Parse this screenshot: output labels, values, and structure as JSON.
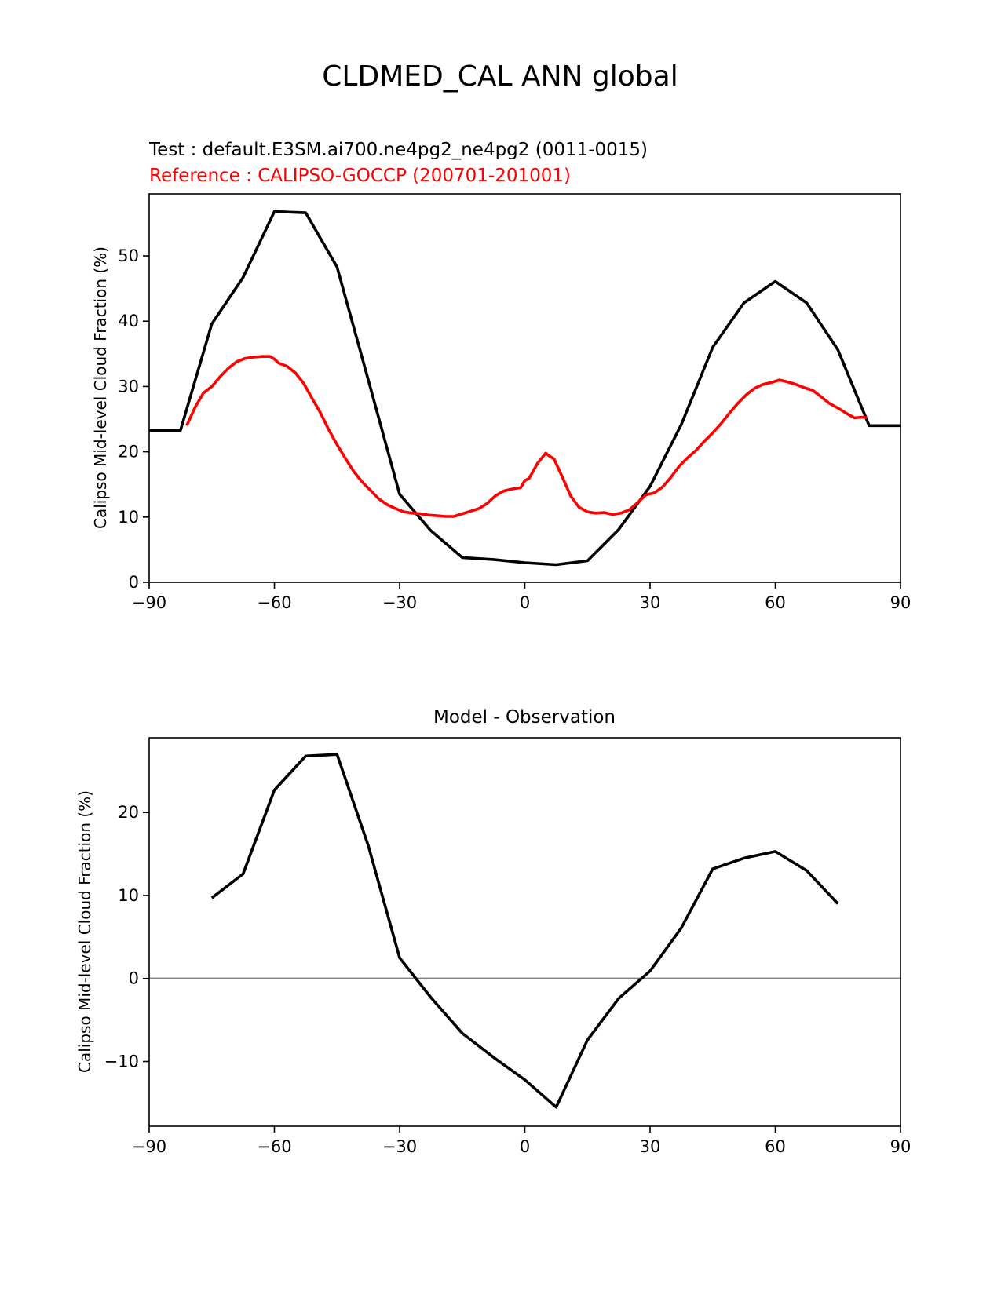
{
  "figure": {
    "suptitle": "CLDMED_CAL ANN global"
  },
  "colors": {
    "test": "#000000",
    "reference": "#ff0000",
    "zero_line": "#808080"
  },
  "chart_data": [
    {
      "type": "line",
      "subtitle_test": "Test : default.E3SM.ai700.ne4pg2_ne4pg2 (0011-0015)",
      "subtitle_reference": "Reference : CALIPSO-GOCCP (200701-201001)",
      "xlabel": "",
      "ylabel": "Calipso Mid-level Cloud Fraction (%)",
      "xlim": [
        -90,
        90
      ],
      "ylim": [
        0,
        59.5
      ],
      "xticks": [
        "−90",
        "−60",
        "−30",
        "0",
        "30",
        "60",
        "90"
      ],
      "xtick_values": [
        -90,
        -60,
        -30,
        0,
        30,
        60,
        90
      ],
      "yticks": [
        "0",
        "10",
        "20",
        "30",
        "40",
        "50"
      ],
      "ytick_values": [
        0,
        10,
        20,
        30,
        40,
        50
      ],
      "grid": false,
      "series": [
        {
          "role": "test",
          "x": [
            -90,
            -82.5,
            -75,
            -67.5,
            -60,
            -52.5,
            -45,
            -37.5,
            -30,
            -22.5,
            -15,
            -7.5,
            0,
            7.5,
            15,
            22.5,
            30,
            37.5,
            45,
            52.5,
            60,
            67.5,
            75,
            82.5,
            90
          ],
          "values": [
            23.3,
            23.3,
            39.6,
            46.7,
            56.8,
            56.6,
            48.3,
            31.0,
            13.5,
            7.9,
            3.8,
            3.5,
            3.0,
            2.7,
            3.3,
            8.1,
            14.7,
            24.2,
            36.0,
            42.8,
            46.1,
            42.8,
            35.6,
            24.0,
            24.0
          ]
        },
        {
          "role": "reference",
          "x": [
            -81,
            -79,
            -77,
            -75,
            -73,
            -71,
            -69,
            -67,
            -65,
            -63,
            -61,
            -60,
            -59,
            -57,
            -55,
            -53,
            -51,
            -49,
            -47,
            -45,
            -43,
            -41,
            -39,
            -37,
            -35,
            -33,
            -31,
            -29,
            -27,
            -25,
            -23,
            -21,
            -19,
            -17,
            -15,
            -13,
            -11,
            -9,
            -7,
            -5,
            -3,
            -1,
            0,
            1,
            3,
            5,
            6,
            7,
            9,
            11,
            13,
            15,
            17,
            19,
            21,
            23,
            25,
            27,
            29,
            31,
            33,
            35,
            37,
            39,
            41,
            43,
            45,
            47,
            49,
            51,
            53,
            55,
            57,
            59,
            61,
            63,
            65,
            67,
            69,
            71,
            73,
            75,
            77,
            79,
            81,
            82
          ],
          "values": [
            24.0,
            26.8,
            29.0,
            30.0,
            31.5,
            32.8,
            33.8,
            34.3,
            34.5,
            34.6,
            34.6,
            34.2,
            33.6,
            33.1,
            32.1,
            30.5,
            28.2,
            26.0,
            23.4,
            21.1,
            19.0,
            17.0,
            15.4,
            14.1,
            12.8,
            11.9,
            11.3,
            10.8,
            10.6,
            10.5,
            10.3,
            10.2,
            10.1,
            10.1,
            10.5,
            10.9,
            11.3,
            12.1,
            13.3,
            14.0,
            14.3,
            14.5,
            15.6,
            15.9,
            18.2,
            19.8,
            19.3,
            18.9,
            16.1,
            13.2,
            11.5,
            10.8,
            10.6,
            10.7,
            10.4,
            10.6,
            11.1,
            12.2,
            13.4,
            13.7,
            14.6,
            16.1,
            17.8,
            19.1,
            20.2,
            21.6,
            22.9,
            24.3,
            25.9,
            27.4,
            28.7,
            29.7,
            30.3,
            30.6,
            31.0,
            30.7,
            30.3,
            29.8,
            29.4,
            28.4,
            27.4,
            26.7,
            25.9,
            25.2,
            25.3,
            25.2
          ]
        }
      ]
    },
    {
      "type": "line",
      "title": "Model - Observation",
      "xlabel": "",
      "ylabel": "Calipso Mid-level Cloud Fraction (%)",
      "xlim": [
        -90,
        90
      ],
      "ylim": [
        -17.8,
        29.0
      ],
      "xticks": [
        "−90",
        "−60",
        "−30",
        "0",
        "30",
        "60",
        "90"
      ],
      "xtick_values": [
        -90,
        -60,
        -30,
        0,
        30,
        60,
        90
      ],
      "yticks": [
        "−10",
        "0",
        "10",
        "20"
      ],
      "ytick_values": [
        -10,
        0,
        10,
        20
      ],
      "grid": false,
      "reference_line": 0,
      "series": [
        {
          "role": "difference",
          "x": [
            -75,
            -67.5,
            -60,
            -52.5,
            -45,
            -37.5,
            -30,
            -22.5,
            -15,
            -7.5,
            0,
            7.5,
            15,
            22.5,
            30,
            37.5,
            45,
            52.5,
            60,
            67.5,
            75
          ],
          "values": [
            9.7,
            12.6,
            22.7,
            26.8,
            27.0,
            16.0,
            2.5,
            -2.3,
            -6.6,
            -9.5,
            -12.2,
            -15.5,
            -7.4,
            -2.4,
            0.9,
            6.1,
            13.2,
            14.5,
            15.3,
            13.0,
            9.0
          ]
        }
      ]
    }
  ]
}
